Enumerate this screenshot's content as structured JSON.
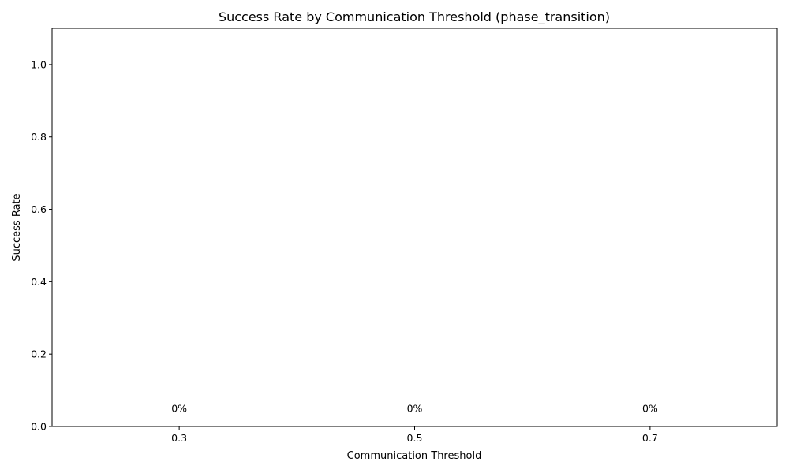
{
  "chart_data": {
    "type": "bar",
    "title": "Success Rate by Communication Threshold (phase_transition)",
    "xlabel": "Communication Threshold",
    "ylabel": "Success Rate",
    "categories": [
      "0.3",
      "0.5",
      "0.7"
    ],
    "values": [
      0,
      0,
      0
    ],
    "data_labels": [
      "0%",
      "0%",
      "0%"
    ],
    "ylim": [
      0,
      1.1
    ],
    "yticks": [
      0.0,
      0.2,
      0.4,
      0.6,
      0.8,
      1.0
    ],
    "ytick_labels": [
      "0.0",
      "0.2",
      "0.4",
      "0.6",
      "0.8",
      "1.0"
    ],
    "grid": false,
    "bar_color": "#1f77b4"
  }
}
